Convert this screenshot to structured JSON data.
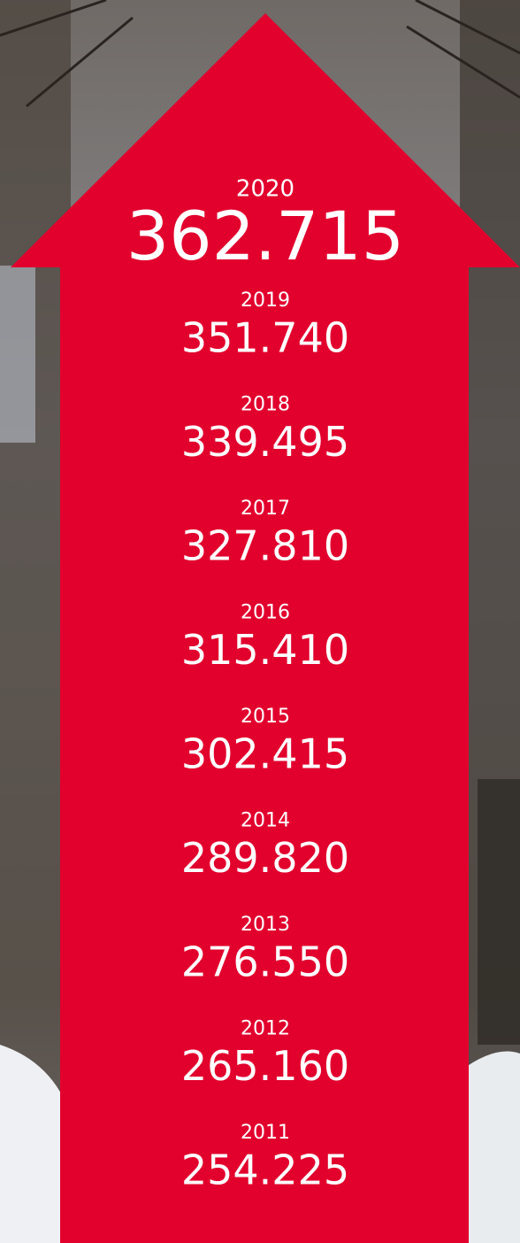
{
  "items": [
    {
      "year": "2020",
      "value": "362.715"
    },
    {
      "year": "2019",
      "value": "351.740"
    },
    {
      "year": "2018",
      "value": "339.495"
    },
    {
      "year": "2017",
      "value": "327.810"
    },
    {
      "year": "2016",
      "value": "315.410"
    },
    {
      "year": "2015",
      "value": "302.415"
    },
    {
      "year": "2014",
      "value": "289.820"
    },
    {
      "year": "2013",
      "value": "276.550"
    },
    {
      "year": "2012",
      "value": "265.160"
    },
    {
      "year": "2011",
      "value": "254.225"
    }
  ]
}
